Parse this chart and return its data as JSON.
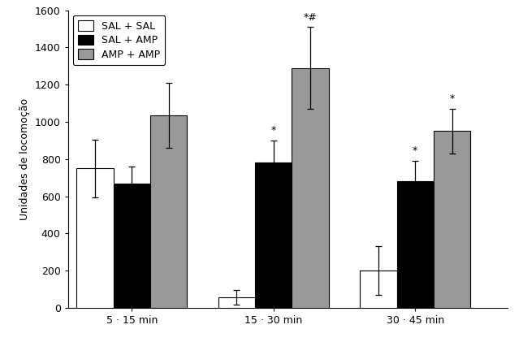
{
  "groups": [
    "5 · 15 min",
    "15 · 30 min",
    "30 · 45 min"
  ],
  "series": [
    {
      "label": "SAL + SAL",
      "color": "#ffffff",
      "edgecolor": "#000000",
      "values": [
        750,
        55,
        200
      ],
      "errors": [
        155,
        40,
        130
      ]
    },
    {
      "label": "SAL + AMP",
      "color": "#000000",
      "edgecolor": "#000000",
      "values": [
        670,
        780,
        680
      ],
      "errors": [
        90,
        120,
        110
      ]
    },
    {
      "label": "AMP + AMP",
      "color": "#999999",
      "edgecolor": "#000000",
      "values": [
        1035,
        1290,
        950
      ],
      "errors": [
        175,
        220,
        120
      ]
    }
  ],
  "ylabel": "Unidades de locomoção",
  "ylim": [
    0,
    1600
  ],
  "yticks": [
    0,
    200,
    400,
    600,
    800,
    1000,
    1200,
    1400,
    1600
  ],
  "bar_width": 0.26,
  "group_positions": [
    1,
    2,
    3
  ],
  "background_color": "#ffffff",
  "legend_position": "upper left"
}
